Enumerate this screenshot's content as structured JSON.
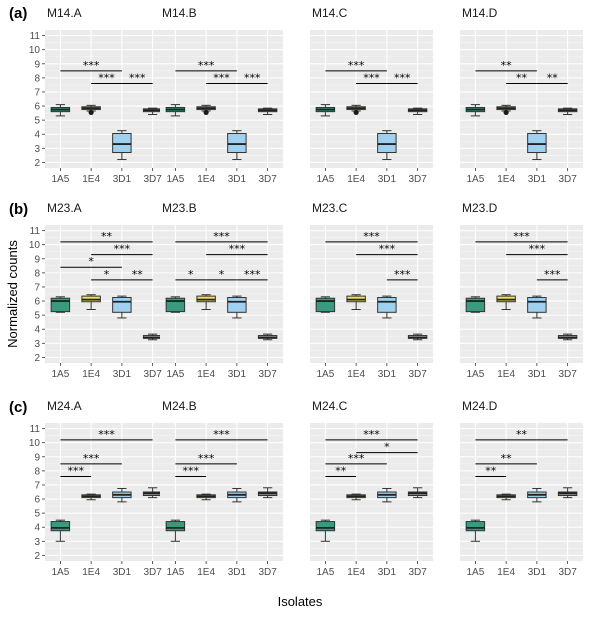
{
  "xlabel": "Isolates",
  "ylabel": "Normalized counts",
  "categories": [
    "1A5",
    "1E4",
    "3D1",
    "3D7"
  ],
  "colors": {
    "1A5": "#3a9a80",
    "1E4": "#f1dc5a",
    "3D1": "#9fd0f0",
    "3D7": "#9a9a9a"
  },
  "chart_data": [
    {
      "type": "box",
      "row": 0,
      "col": 0,
      "row_label": "(a)",
      "title": "M14.A",
      "categories": [
        "1A5",
        "1E4",
        "3D1",
        "3D7"
      ],
      "ylim": [
        1.6,
        11.4
      ],
      "yticks": [
        2,
        3,
        4,
        5,
        6,
        7,
        8,
        9,
        10,
        11
      ],
      "series": [
        {
          "name": "1A5",
          "min": 5.3,
          "q1": 5.6,
          "median": 5.75,
          "q3": 5.9,
          "max": 6.1,
          "outliers": []
        },
        {
          "name": "1E4",
          "min": 5.65,
          "q1": 5.75,
          "median": 5.85,
          "q3": 5.95,
          "max": 6.05,
          "outliers": [
            5.55
          ]
        },
        {
          "name": "3D1",
          "min": 2.2,
          "q1": 2.7,
          "median": 3.3,
          "q3": 4.05,
          "max": 4.25,
          "outliers": []
        },
        {
          "name": "3D7",
          "min": 5.4,
          "q1": 5.6,
          "median": 5.7,
          "q3": 5.8,
          "max": 5.85,
          "outliers": []
        }
      ],
      "annotations": [
        {
          "from": "1A5",
          "to": "3D1",
          "y": 8.5,
          "label": "***"
        },
        {
          "from": "1E4",
          "to": "3D1",
          "y": 7.6,
          "label": "***"
        },
        {
          "from": "3D1",
          "to": "3D7",
          "y": 7.6,
          "label": "***"
        }
      ]
    },
    {
      "type": "box",
      "row": 0,
      "col": 1,
      "row_label": "",
      "title": "M14.B",
      "categories": [
        "1A5",
        "1E4",
        "3D1",
        "3D7"
      ],
      "ylim": [
        1.6,
        11.4
      ],
      "yticks": [
        2,
        3,
        4,
        5,
        6,
        7,
        8,
        9,
        10,
        11
      ],
      "series": [
        {
          "name": "1A5",
          "min": 5.3,
          "q1": 5.6,
          "median": 5.75,
          "q3": 5.9,
          "max": 6.1,
          "outliers": []
        },
        {
          "name": "1E4",
          "min": 5.65,
          "q1": 5.75,
          "median": 5.85,
          "q3": 5.95,
          "max": 6.05,
          "outliers": [
            5.55
          ]
        },
        {
          "name": "3D1",
          "min": 2.2,
          "q1": 2.7,
          "median": 3.3,
          "q3": 4.05,
          "max": 4.25,
          "outliers": []
        },
        {
          "name": "3D7",
          "min": 5.4,
          "q1": 5.6,
          "median": 5.7,
          "q3": 5.8,
          "max": 5.85,
          "outliers": []
        }
      ],
      "annotations": [
        {
          "from": "1A5",
          "to": "3D1",
          "y": 8.5,
          "label": "***"
        },
        {
          "from": "1E4",
          "to": "3D1",
          "y": 7.6,
          "label": "***"
        },
        {
          "from": "3D1",
          "to": "3D7",
          "y": 7.6,
          "label": "***"
        }
      ]
    },
    {
      "type": "box",
      "row": 0,
      "col": 2,
      "row_label": "",
      "title": "M14.C",
      "categories": [
        "1A5",
        "1E4",
        "3D1",
        "3D7"
      ],
      "ylim": [
        1.6,
        11.4
      ],
      "yticks": [
        2,
        3,
        4,
        5,
        6,
        7,
        8,
        9,
        10,
        11
      ],
      "series": [
        {
          "name": "1A5",
          "min": 5.3,
          "q1": 5.6,
          "median": 5.75,
          "q3": 5.9,
          "max": 6.1,
          "outliers": []
        },
        {
          "name": "1E4",
          "min": 5.65,
          "q1": 5.75,
          "median": 5.85,
          "q3": 5.95,
          "max": 6.05,
          "outliers": [
            5.55
          ]
        },
        {
          "name": "3D1",
          "min": 2.2,
          "q1": 2.7,
          "median": 3.3,
          "q3": 4.05,
          "max": 4.25,
          "outliers": []
        },
        {
          "name": "3D7",
          "min": 5.4,
          "q1": 5.6,
          "median": 5.7,
          "q3": 5.8,
          "max": 5.85,
          "outliers": []
        }
      ],
      "annotations": [
        {
          "from": "1A5",
          "to": "3D1",
          "y": 8.5,
          "label": "***"
        },
        {
          "from": "1E4",
          "to": "3D1",
          "y": 7.6,
          "label": "***"
        },
        {
          "from": "3D1",
          "to": "3D7",
          "y": 7.6,
          "label": "***"
        }
      ]
    },
    {
      "type": "box",
      "row": 0,
      "col": 3,
      "row_label": "",
      "title": "M14.D",
      "categories": [
        "1A5",
        "1E4",
        "3D1",
        "3D7"
      ],
      "ylim": [
        1.6,
        11.4
      ],
      "yticks": [
        2,
        3,
        4,
        5,
        6,
        7,
        8,
        9,
        10,
        11
      ],
      "series": [
        {
          "name": "1A5",
          "min": 5.3,
          "q1": 5.6,
          "median": 5.75,
          "q3": 5.9,
          "max": 6.1,
          "outliers": []
        },
        {
          "name": "1E4",
          "min": 5.65,
          "q1": 5.75,
          "median": 5.85,
          "q3": 5.95,
          "max": 6.05,
          "outliers": [
            5.55
          ]
        },
        {
          "name": "3D1",
          "min": 2.2,
          "q1": 2.7,
          "median": 3.3,
          "q3": 4.05,
          "max": 4.25,
          "outliers": []
        },
        {
          "name": "3D7",
          "min": 5.4,
          "q1": 5.6,
          "median": 5.7,
          "q3": 5.8,
          "max": 5.85,
          "outliers": []
        }
      ],
      "annotations": [
        {
          "from": "1A5",
          "to": "3D1",
          "y": 8.5,
          "label": "**"
        },
        {
          "from": "1E4",
          "to": "3D1",
          "y": 7.6,
          "label": "**"
        },
        {
          "from": "3D1",
          "to": "3D7",
          "y": 7.6,
          "label": "**"
        }
      ]
    },
    {
      "type": "box",
      "row": 1,
      "col": 0,
      "row_label": "(b)",
      "title": "M23.A",
      "categories": [
        "1A5",
        "1E4",
        "3D1",
        "3D7"
      ],
      "ylim": [
        1.6,
        11.4
      ],
      "yticks": [
        2,
        3,
        4,
        5,
        6,
        7,
        8,
        9,
        10,
        11
      ],
      "series": [
        {
          "name": "1A5",
          "min": 5.2,
          "q1": 5.25,
          "median": 6.0,
          "q3": 6.2,
          "max": 6.3,
          "outliers": []
        },
        {
          "name": "1E4",
          "min": 5.4,
          "q1": 5.95,
          "median": 6.1,
          "q3": 6.35,
          "max": 6.45,
          "outliers": []
        },
        {
          "name": "3D1",
          "min": 4.8,
          "q1": 5.2,
          "median": 5.95,
          "q3": 6.25,
          "max": 6.35,
          "outliers": []
        },
        {
          "name": "3D7",
          "min": 3.25,
          "q1": 3.35,
          "median": 3.4,
          "q3": 3.55,
          "max": 3.65,
          "outliers": []
        }
      ],
      "annotations": [
        {
          "from": "1A5",
          "to": "3D7",
          "y": 10.2,
          "label": "**"
        },
        {
          "from": "1E4",
          "to": "3D7",
          "y": 9.3,
          "label": "***"
        },
        {
          "from": "1A5",
          "to": "3D1",
          "y": 8.4,
          "label": "*"
        },
        {
          "from": "1E4",
          "to": "3D1",
          "y": 7.5,
          "label": "*"
        },
        {
          "from": "3D1",
          "to": "3D7",
          "y": 7.5,
          "label": "**"
        }
      ]
    },
    {
      "type": "box",
      "row": 1,
      "col": 1,
      "row_label": "",
      "title": "M23.B",
      "categories": [
        "1A5",
        "1E4",
        "3D1",
        "3D7"
      ],
      "ylim": [
        1.6,
        11.4
      ],
      "yticks": [
        2,
        3,
        4,
        5,
        6,
        7,
        8,
        9,
        10,
        11
      ],
      "series": [
        {
          "name": "1A5",
          "min": 5.2,
          "q1": 5.25,
          "median": 6.0,
          "q3": 6.2,
          "max": 6.3,
          "outliers": []
        },
        {
          "name": "1E4",
          "min": 5.4,
          "q1": 5.95,
          "median": 6.1,
          "q3": 6.35,
          "max": 6.45,
          "outliers": []
        },
        {
          "name": "3D1",
          "min": 4.8,
          "q1": 5.2,
          "median": 5.95,
          "q3": 6.25,
          "max": 6.35,
          "outliers": []
        },
        {
          "name": "3D7",
          "min": 3.25,
          "q1": 3.35,
          "median": 3.4,
          "q3": 3.55,
          "max": 3.65,
          "outliers": []
        }
      ],
      "annotations": [
        {
          "from": "1A5",
          "to": "3D7",
          "y": 10.2,
          "label": "***"
        },
        {
          "from": "1E4",
          "to": "3D7",
          "y": 9.3,
          "label": "***"
        },
        {
          "from": "1A5",
          "to": "1E4",
          "y": 7.5,
          "label": "*"
        },
        {
          "from": "1E4",
          "to": "3D1",
          "y": 7.5,
          "label": "*"
        },
        {
          "from": "3D1",
          "to": "3D7",
          "y": 7.5,
          "label": "***"
        }
      ]
    },
    {
      "type": "box",
      "row": 1,
      "col": 2,
      "row_label": "",
      "title": "M23.C",
      "categories": [
        "1A5",
        "1E4",
        "3D1",
        "3D7"
      ],
      "ylim": [
        1.6,
        11.4
      ],
      "yticks": [
        2,
        3,
        4,
        5,
        6,
        7,
        8,
        9,
        10,
        11
      ],
      "series": [
        {
          "name": "1A5",
          "min": 5.2,
          "q1": 5.25,
          "median": 6.0,
          "q3": 6.2,
          "max": 6.3,
          "outliers": []
        },
        {
          "name": "1E4",
          "min": 5.4,
          "q1": 5.95,
          "median": 6.1,
          "q3": 6.35,
          "max": 6.45,
          "outliers": []
        },
        {
          "name": "3D1",
          "min": 4.8,
          "q1": 5.2,
          "median": 5.95,
          "q3": 6.25,
          "max": 6.35,
          "outliers": []
        },
        {
          "name": "3D7",
          "min": 3.25,
          "q1": 3.35,
          "median": 3.4,
          "q3": 3.55,
          "max": 3.65,
          "outliers": []
        }
      ],
      "annotations": [
        {
          "from": "1A5",
          "to": "3D7",
          "y": 10.2,
          "label": "***"
        },
        {
          "from": "1E4",
          "to": "3D7",
          "y": 9.3,
          "label": "***"
        },
        {
          "from": "3D1",
          "to": "3D7",
          "y": 7.5,
          "label": "***"
        }
      ]
    },
    {
      "type": "box",
      "row": 1,
      "col": 3,
      "row_label": "",
      "title": "M23.D",
      "categories": [
        "1A5",
        "1E4",
        "3D1",
        "3D7"
      ],
      "ylim": [
        1.6,
        11.4
      ],
      "yticks": [
        2,
        3,
        4,
        5,
        6,
        7,
        8,
        9,
        10,
        11
      ],
      "series": [
        {
          "name": "1A5",
          "min": 5.2,
          "q1": 5.25,
          "median": 6.0,
          "q3": 6.2,
          "max": 6.3,
          "outliers": []
        },
        {
          "name": "1E4",
          "min": 5.4,
          "q1": 5.95,
          "median": 6.1,
          "q3": 6.35,
          "max": 6.45,
          "outliers": []
        },
        {
          "name": "3D1",
          "min": 4.8,
          "q1": 5.2,
          "median": 5.95,
          "q3": 6.25,
          "max": 6.35,
          "outliers": []
        },
        {
          "name": "3D7",
          "min": 3.25,
          "q1": 3.35,
          "median": 3.4,
          "q3": 3.55,
          "max": 3.65,
          "outliers": []
        }
      ],
      "annotations": [
        {
          "from": "1A5",
          "to": "3D7",
          "y": 10.2,
          "label": "***"
        },
        {
          "from": "1E4",
          "to": "3D7",
          "y": 9.3,
          "label": "***"
        },
        {
          "from": "3D1",
          "to": "3D7",
          "y": 7.5,
          "label": "***"
        }
      ]
    },
    {
      "type": "box",
      "row": 2,
      "col": 0,
      "row_label": "(c)",
      "title": "M24.A",
      "categories": [
        "1A5",
        "1E4",
        "3D1",
        "3D7"
      ],
      "ylim": [
        1.6,
        11.4
      ],
      "yticks": [
        2,
        3,
        4,
        5,
        6,
        7,
        8,
        9,
        10,
        11
      ],
      "series": [
        {
          "name": "1A5",
          "min": 3.0,
          "q1": 3.75,
          "median": 3.95,
          "q3": 4.4,
          "max": 4.5,
          "outliers": []
        },
        {
          "name": "1E4",
          "min": 5.95,
          "q1": 6.1,
          "median": 6.2,
          "q3": 6.3,
          "max": 6.35,
          "outliers": []
        },
        {
          "name": "3D1",
          "min": 5.8,
          "q1": 6.1,
          "median": 6.3,
          "q3": 6.5,
          "max": 6.75,
          "outliers": []
        },
        {
          "name": "3D7",
          "min": 6.1,
          "q1": 6.25,
          "median": 6.4,
          "q3": 6.5,
          "max": 6.8,
          "outliers": []
        }
      ],
      "annotations": [
        {
          "from": "1A5",
          "to": "3D7",
          "y": 10.2,
          "label": "***"
        },
        {
          "from": "1A5",
          "to": "3D1",
          "y": 8.5,
          "label": "***"
        },
        {
          "from": "1A5",
          "to": "1E4",
          "y": 7.6,
          "label": "***"
        }
      ]
    },
    {
      "type": "box",
      "row": 2,
      "col": 1,
      "row_label": "",
      "title": "M24.B",
      "categories": [
        "1A5",
        "1E4",
        "3D1",
        "3D7"
      ],
      "ylim": [
        1.6,
        11.4
      ],
      "yticks": [
        2,
        3,
        4,
        5,
        6,
        7,
        8,
        9,
        10,
        11
      ],
      "series": [
        {
          "name": "1A5",
          "min": 3.0,
          "q1": 3.75,
          "median": 3.95,
          "q3": 4.4,
          "max": 4.5,
          "outliers": []
        },
        {
          "name": "1E4",
          "min": 5.95,
          "q1": 6.1,
          "median": 6.2,
          "q3": 6.3,
          "max": 6.35,
          "outliers": []
        },
        {
          "name": "3D1",
          "min": 5.8,
          "q1": 6.1,
          "median": 6.3,
          "q3": 6.5,
          "max": 6.75,
          "outliers": []
        },
        {
          "name": "3D7",
          "min": 6.1,
          "q1": 6.25,
          "median": 6.4,
          "q3": 6.5,
          "max": 6.8,
          "outliers": []
        }
      ],
      "annotations": [
        {
          "from": "1A5",
          "to": "3D7",
          "y": 10.2,
          "label": "***"
        },
        {
          "from": "1A5",
          "to": "3D1",
          "y": 8.5,
          "label": "***"
        },
        {
          "from": "1A5",
          "to": "1E4",
          "y": 7.6,
          "label": "***"
        }
      ]
    },
    {
      "type": "box",
      "row": 2,
      "col": 2,
      "row_label": "",
      "title": "M24.C",
      "categories": [
        "1A5",
        "1E4",
        "3D1",
        "3D7"
      ],
      "ylim": [
        1.6,
        11.4
      ],
      "yticks": [
        2,
        3,
        4,
        5,
        6,
        7,
        8,
        9,
        10,
        11
      ],
      "series": [
        {
          "name": "1A5",
          "min": 3.0,
          "q1": 3.75,
          "median": 3.95,
          "q3": 4.4,
          "max": 4.5,
          "outliers": []
        },
        {
          "name": "1E4",
          "min": 5.95,
          "q1": 6.1,
          "median": 6.2,
          "q3": 6.3,
          "max": 6.35,
          "outliers": []
        },
        {
          "name": "3D1",
          "min": 5.8,
          "q1": 6.1,
          "median": 6.3,
          "q3": 6.5,
          "max": 6.75,
          "outliers": []
        },
        {
          "name": "3D7",
          "min": 6.1,
          "q1": 6.25,
          "median": 6.4,
          "q3": 6.5,
          "max": 6.8,
          "outliers": []
        }
      ],
      "annotations": [
        {
          "from": "1A5",
          "to": "3D7",
          "y": 10.2,
          "label": "***"
        },
        {
          "from": "1E4",
          "to": "3D7",
          "y": 9.3,
          "label": "*"
        },
        {
          "from": "1A5",
          "to": "3D1",
          "y": 8.5,
          "label": "***"
        },
        {
          "from": "1A5",
          "to": "1E4",
          "y": 7.6,
          "label": "**"
        }
      ]
    },
    {
      "type": "box",
      "row": 2,
      "col": 3,
      "row_label": "",
      "title": "M24.D",
      "categories": [
        "1A5",
        "1E4",
        "3D1",
        "3D7"
      ],
      "ylim": [
        1.6,
        11.4
      ],
      "yticks": [
        2,
        3,
        4,
        5,
        6,
        7,
        8,
        9,
        10,
        11
      ],
      "series": [
        {
          "name": "1A5",
          "min": 3.0,
          "q1": 3.75,
          "median": 3.95,
          "q3": 4.4,
          "max": 4.5,
          "outliers": []
        },
        {
          "name": "1E4",
          "min": 5.95,
          "q1": 6.1,
          "median": 6.2,
          "q3": 6.3,
          "max": 6.35,
          "outliers": []
        },
        {
          "name": "3D1",
          "min": 5.8,
          "q1": 6.1,
          "median": 6.3,
          "q3": 6.5,
          "max": 6.75,
          "outliers": []
        },
        {
          "name": "3D7",
          "min": 6.1,
          "q1": 6.25,
          "median": 6.4,
          "q3": 6.5,
          "max": 6.8,
          "outliers": []
        }
      ],
      "annotations": [
        {
          "from": "1A5",
          "to": "3D7",
          "y": 10.2,
          "label": "**"
        },
        {
          "from": "1A5",
          "to": "3D1",
          "y": 8.5,
          "label": "**"
        },
        {
          "from": "1A5",
          "to": "1E4",
          "y": 7.6,
          "label": "**"
        }
      ]
    }
  ]
}
